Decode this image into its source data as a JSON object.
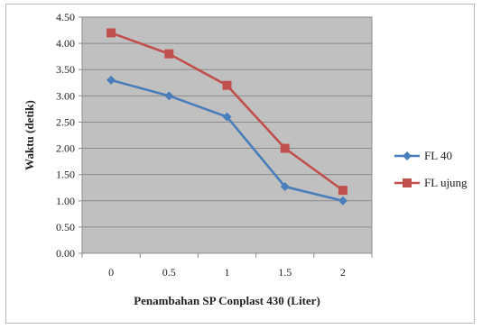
{
  "chart_data": {
    "type": "line",
    "title": "",
    "xlabel": "Penambahan SP Conplast 430 (Liter)",
    "ylabel": "Waktu (detik)",
    "categories": [
      "0",
      "0.5",
      "1",
      "1.5",
      "2"
    ],
    "ylim": [
      0,
      4.5
    ],
    "ytick_step": 0.5,
    "ytick_labels": [
      "0.00",
      "0.50",
      "1.00",
      "1.50",
      "2.00",
      "2.50",
      "3.00",
      "3.50",
      "4.00",
      "4.50"
    ],
    "grid": true,
    "legend_position": "right",
    "plot_background": "#c0c0c0",
    "series": [
      {
        "name": "FL 40",
        "values": [
          3.3,
          3.0,
          2.6,
          1.27,
          1.0
        ],
        "color": "#4a7ebb",
        "marker": "diamond"
      },
      {
        "name": "FL ujung",
        "values": [
          4.2,
          3.8,
          3.2,
          2.0,
          1.2
        ],
        "color": "#c0504d",
        "marker": "square"
      }
    ]
  }
}
